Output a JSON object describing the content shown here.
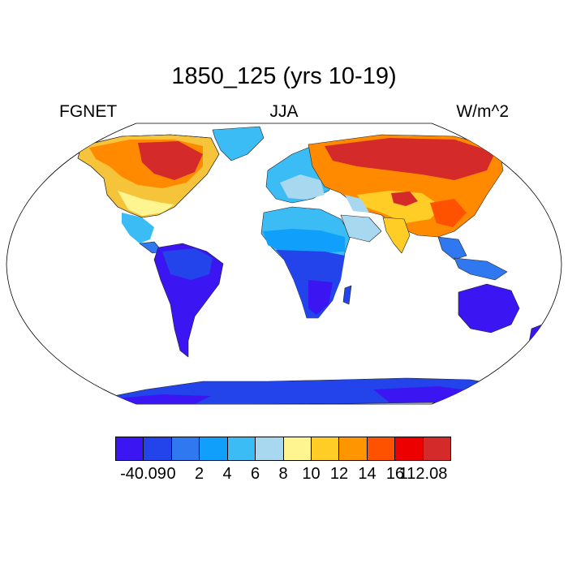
{
  "title": "1850_125 (yrs 10-19)",
  "left_label": "FGNET",
  "center_label": "JJA",
  "right_label": "W/m^2",
  "colorbar": {
    "colors": [
      "#3b16f2",
      "#2244ea",
      "#2f78f0",
      "#10a0fb",
      "#3cbcf5",
      "#a7d8f0",
      "#fff590",
      "#ffcd25",
      "#ff9500",
      "#ff5200",
      "#ec0000",
      "#d42a2a"
    ],
    "labels": [
      "-40.09",
      "0",
      "2",
      "4",
      "6",
      "8",
      "10",
      "12",
      "14",
      "16",
      "112.08"
    ]
  },
  "map": {
    "ocean_color": "#ffffff",
    "projection": "Robinson",
    "field": "FGNET JJA mean"
  }
}
